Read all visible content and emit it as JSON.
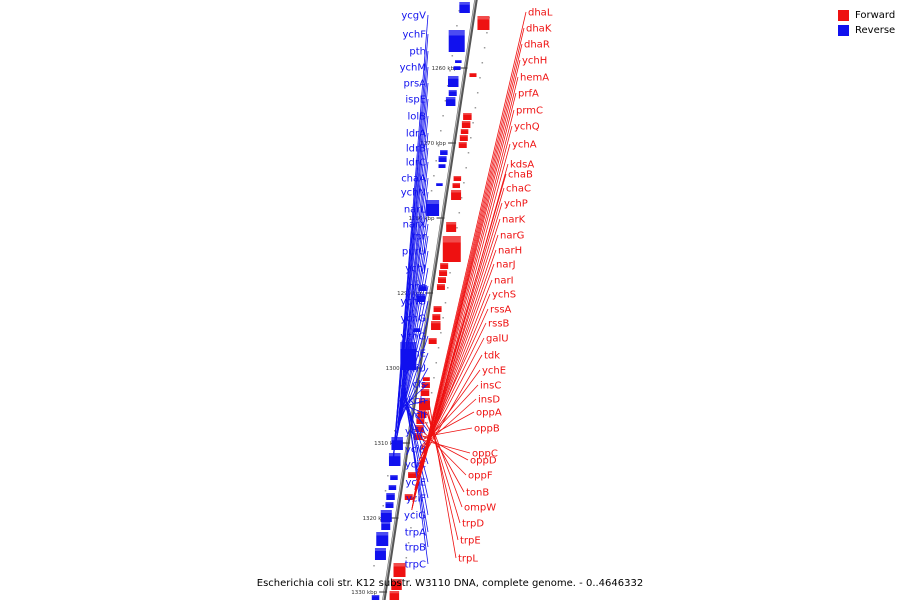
{
  "caption": "Escherichia coli str. K12 substr. W3110 DNA, complete genome. - 0..4646332",
  "legend": [
    {
      "label": "Forward",
      "color": "#ee1111"
    },
    {
      "label": "Reverse",
      "color": "#1111ee"
    }
  ],
  "colors": {
    "forward": "#ee1111",
    "reverse": "#1111ee",
    "axis": "#888888"
  },
  "ticks": [
    "1260 kbp",
    "1270 kbp",
    "1280 kbp",
    "1290 kbp",
    "1300 kbp",
    "1310 kbp",
    "1320 kbp",
    "1330 kbp"
  ],
  "reverse_genes": [
    "ycgV",
    "ychF",
    "pth",
    "ychM",
    "prsA",
    "ispE",
    "lolB",
    "ldrA",
    "ldrB",
    "ldrC",
    "chaA",
    "ychN",
    "narL",
    "narX",
    "tpr",
    "purU",
    "ychJ",
    "hns",
    "ychG",
    "ychG",
    "ychG",
    "adhE",
    "yciU",
    "cls",
    "kch",
    "yciI",
    "yciA",
    "yciB",
    "yciC",
    "yciE",
    "yciF",
    "yciG",
    "trpA",
    "trpB",
    "trpC"
  ],
  "forward_genes": [
    "dhaL",
    "dhaK",
    "dhaR",
    "ychH",
    "hemA",
    "prfA",
    "prmC",
    "ychQ",
    "ychA",
    "kdsA",
    "chaB",
    "chaC",
    "ychP",
    "narK",
    "narG",
    "narH",
    "narJ",
    "narI",
    "ychS",
    "rssA",
    "rssB",
    "galU",
    "tdk",
    "ychE",
    "insC",
    "insD",
    "oppA",
    "oppB",
    "oppC",
    "oppD",
    "oppF",
    "tonB",
    "ompW",
    "trpD",
    "trpE",
    "trpL"
  ]
}
